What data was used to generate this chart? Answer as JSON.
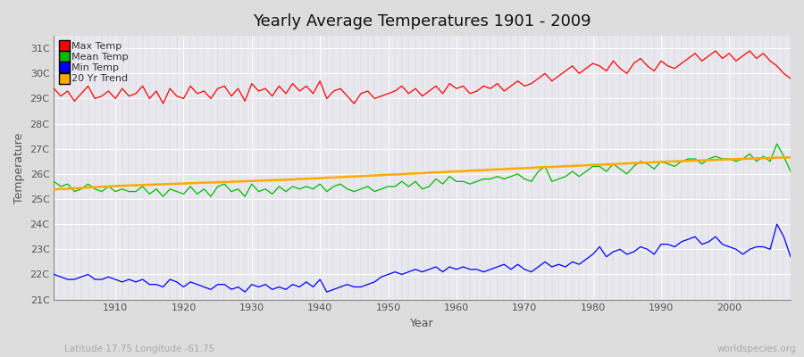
{
  "title": "Yearly Average Temperatures 1901 - 2009",
  "xlabel": "Year",
  "ylabel": "Temperature",
  "footnote_left": "Latitude 17.75 Longitude -61.75",
  "footnote_right": "worldspecies.org",
  "years": [
    1901,
    1902,
    1903,
    1904,
    1905,
    1906,
    1907,
    1908,
    1909,
    1910,
    1911,
    1912,
    1913,
    1914,
    1915,
    1916,
    1917,
    1918,
    1919,
    1920,
    1921,
    1922,
    1923,
    1924,
    1925,
    1926,
    1927,
    1928,
    1929,
    1930,
    1931,
    1932,
    1933,
    1934,
    1935,
    1936,
    1937,
    1938,
    1939,
    1940,
    1941,
    1942,
    1943,
    1944,
    1945,
    1946,
    1947,
    1948,
    1949,
    1950,
    1951,
    1952,
    1953,
    1954,
    1955,
    1956,
    1957,
    1958,
    1959,
    1960,
    1961,
    1962,
    1963,
    1964,
    1965,
    1966,
    1967,
    1968,
    1969,
    1970,
    1971,
    1972,
    1973,
    1974,
    1975,
    1976,
    1977,
    1978,
    1979,
    1980,
    1981,
    1982,
    1983,
    1984,
    1985,
    1986,
    1987,
    1988,
    1989,
    1990,
    1991,
    1992,
    1993,
    1994,
    1995,
    1996,
    1997,
    1998,
    1999,
    2000,
    2001,
    2002,
    2003,
    2004,
    2005,
    2006,
    2007,
    2008,
    2009
  ],
  "max_temp": [
    29.4,
    29.1,
    29.3,
    28.9,
    29.2,
    29.5,
    29.0,
    29.1,
    29.3,
    29.0,
    29.4,
    29.1,
    29.2,
    29.5,
    29.0,
    29.3,
    28.8,
    29.4,
    29.1,
    29.0,
    29.5,
    29.2,
    29.3,
    29.0,
    29.4,
    29.5,
    29.1,
    29.4,
    28.9,
    29.6,
    29.3,
    29.4,
    29.1,
    29.5,
    29.2,
    29.6,
    29.3,
    29.5,
    29.2,
    29.7,
    29.0,
    29.3,
    29.4,
    29.1,
    28.8,
    29.2,
    29.3,
    29.0,
    29.1,
    29.2,
    29.3,
    29.5,
    29.2,
    29.4,
    29.1,
    29.3,
    29.5,
    29.2,
    29.6,
    29.4,
    29.5,
    29.2,
    29.3,
    29.5,
    29.4,
    29.6,
    29.3,
    29.5,
    29.7,
    29.5,
    29.6,
    29.8,
    30.0,
    29.7,
    29.9,
    30.1,
    30.3,
    30.0,
    30.2,
    30.4,
    30.3,
    30.1,
    30.5,
    30.2,
    30.0,
    30.4,
    30.6,
    30.3,
    30.1,
    30.5,
    30.3,
    30.2,
    30.4,
    30.6,
    30.8,
    30.5,
    30.7,
    30.9,
    30.6,
    30.8,
    30.5,
    30.7,
    30.9,
    30.6,
    30.8,
    30.5,
    30.3,
    30.0,
    29.8
  ],
  "mean_temp": [
    25.7,
    25.5,
    25.6,
    25.3,
    25.4,
    25.6,
    25.4,
    25.3,
    25.5,
    25.3,
    25.4,
    25.3,
    25.3,
    25.5,
    25.2,
    25.4,
    25.1,
    25.4,
    25.3,
    25.2,
    25.5,
    25.2,
    25.4,
    25.1,
    25.5,
    25.6,
    25.3,
    25.4,
    25.1,
    25.6,
    25.3,
    25.4,
    25.2,
    25.5,
    25.3,
    25.5,
    25.4,
    25.5,
    25.4,
    25.6,
    25.3,
    25.5,
    25.6,
    25.4,
    25.3,
    25.4,
    25.5,
    25.3,
    25.4,
    25.5,
    25.5,
    25.7,
    25.5,
    25.7,
    25.4,
    25.5,
    25.8,
    25.6,
    25.9,
    25.7,
    25.7,
    25.6,
    25.7,
    25.8,
    25.8,
    25.9,
    25.8,
    25.9,
    26.0,
    25.8,
    25.7,
    26.1,
    26.3,
    25.7,
    25.8,
    25.9,
    26.1,
    25.9,
    26.1,
    26.3,
    26.3,
    26.1,
    26.4,
    26.2,
    26.0,
    26.3,
    26.5,
    26.4,
    26.2,
    26.5,
    26.4,
    26.3,
    26.5,
    26.6,
    26.6,
    26.4,
    26.6,
    26.7,
    26.6,
    26.6,
    26.5,
    26.6,
    26.8,
    26.5,
    26.7,
    26.5,
    27.2,
    26.7,
    26.1
  ],
  "min_temp": [
    22.0,
    21.9,
    21.8,
    21.8,
    21.9,
    22.0,
    21.8,
    21.8,
    21.9,
    21.8,
    21.7,
    21.8,
    21.7,
    21.8,
    21.6,
    21.6,
    21.5,
    21.8,
    21.7,
    21.5,
    21.7,
    21.6,
    21.5,
    21.4,
    21.6,
    21.6,
    21.4,
    21.5,
    21.3,
    21.6,
    21.5,
    21.6,
    21.4,
    21.5,
    21.4,
    21.6,
    21.5,
    21.7,
    21.5,
    21.8,
    21.3,
    21.4,
    21.5,
    21.6,
    21.5,
    21.5,
    21.6,
    21.7,
    21.9,
    22.0,
    22.1,
    22.0,
    22.1,
    22.2,
    22.1,
    22.2,
    22.3,
    22.1,
    22.3,
    22.2,
    22.3,
    22.2,
    22.2,
    22.1,
    22.2,
    22.3,
    22.4,
    22.2,
    22.4,
    22.2,
    22.1,
    22.3,
    22.5,
    22.3,
    22.4,
    22.3,
    22.5,
    22.4,
    22.6,
    22.8,
    23.1,
    22.7,
    22.9,
    23.0,
    22.8,
    22.9,
    23.1,
    23.0,
    22.8,
    23.2,
    23.2,
    23.1,
    23.3,
    23.4,
    23.5,
    23.2,
    23.3,
    23.5,
    23.2,
    23.1,
    23.0,
    22.8,
    23.0,
    23.1,
    23.1,
    23.0,
    24.0,
    23.5,
    22.7
  ],
  "trend_temp": [
    25.38,
    25.4,
    25.41,
    25.43,
    25.44,
    25.46,
    25.47,
    25.49,
    25.5,
    25.52,
    25.53,
    25.54,
    25.55,
    25.56,
    25.57,
    25.58,
    25.59,
    25.6,
    25.61,
    25.62,
    25.63,
    25.64,
    25.65,
    25.66,
    25.67,
    25.68,
    25.69,
    25.7,
    25.71,
    25.72,
    25.73,
    25.74,
    25.75,
    25.76,
    25.77,
    25.78,
    25.8,
    25.81,
    25.82,
    25.83,
    25.85,
    25.86,
    25.87,
    25.89,
    25.9,
    25.91,
    25.93,
    25.94,
    25.95,
    25.97,
    25.98,
    25.99,
    26.01,
    26.02,
    26.03,
    26.05,
    26.06,
    26.07,
    26.09,
    26.1,
    26.11,
    26.13,
    26.14,
    26.15,
    26.17,
    26.18,
    26.19,
    26.21,
    26.22,
    26.23,
    26.24,
    26.26,
    26.27,
    26.28,
    26.29,
    26.31,
    26.32,
    26.33,
    26.34,
    26.36,
    26.37,
    26.38,
    26.39,
    26.41,
    26.42,
    26.43,
    26.44,
    26.45,
    26.47,
    26.48,
    26.49,
    26.5,
    26.51,
    26.52,
    26.53,
    26.54,
    26.55,
    26.56,
    26.57,
    26.58,
    26.59,
    26.6,
    26.61,
    26.62,
    26.63,
    26.64,
    26.65,
    26.65,
    26.66
  ],
  "max_color": "#ff0000",
  "mean_color": "#00bb00",
  "min_color": "#0000ff",
  "trend_color": "#ffaa00",
  "fig_bg_color": "#dddddd",
  "plot_bg_color": "#e8e8ee",
  "grid_major_color": "#ffffff",
  "grid_minor_color": "#ccccdd",
  "ylim": [
    21.0,
    31.5
  ],
  "yticks": [
    21,
    22,
    23,
    24,
    25,
    26,
    27,
    28,
    29,
    30,
    31
  ],
  "ytick_labels": [
    "21C",
    "22C",
    "23C",
    "24C",
    "25C",
    "26C",
    "27C",
    "28C",
    "29C",
    "30C",
    "31C"
  ],
  "xlim": [
    1901,
    2009
  ],
  "xticks": [
    1910,
    1920,
    1930,
    1940,
    1950,
    1960,
    1970,
    1980,
    1990,
    2000
  ],
  "xtick_labels": [
    "1910",
    "1920",
    "1930",
    "1940",
    "1950",
    "1960",
    "1970",
    "1980",
    "1990",
    "2000"
  ],
  "legend_labels": [
    "Max Temp",
    "Mean Temp",
    "Min Temp",
    "20 Yr Trend"
  ],
  "legend_colors": [
    "#ff0000",
    "#00bb00",
    "#0000ff",
    "#ffaa00"
  ]
}
